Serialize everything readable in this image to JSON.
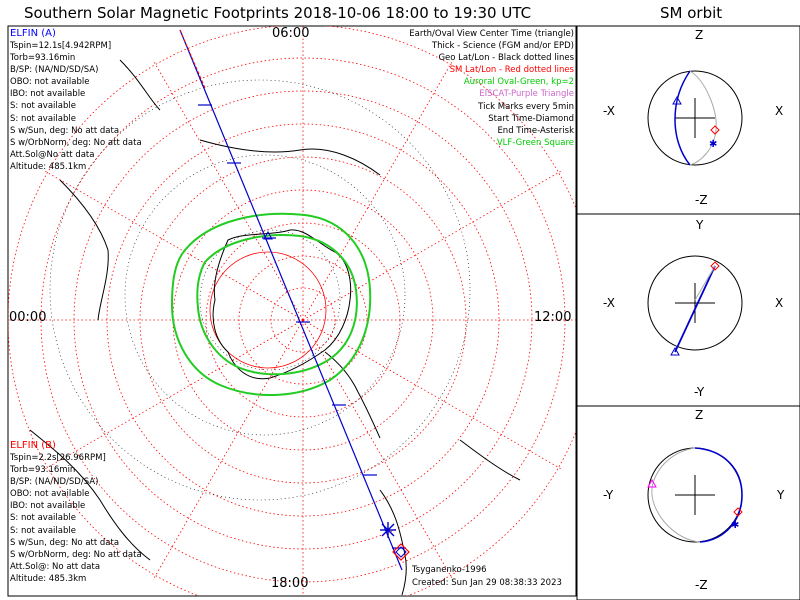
{
  "header": {
    "title": "Southern Solar Magnetic Footprints 2018-10-06 18:00 to 19:30 UTC",
    "orbit_title": "SM orbit"
  },
  "clock_labels": {
    "top": "06:00",
    "left": "00:00",
    "right": "12:00",
    "bottom": "18:00"
  },
  "elfin_a": {
    "name": "ELFIN (A)",
    "color": "#0000ff",
    "lines": [
      "Tspin=12.1s[4.942RPM]",
      "Torb=93.16min",
      "B/SP: (NA/ND/SD/SA)",
      "OBO: not available",
      "IBO: not available",
      "S: not available",
      "S: not available",
      "S w/Sun, deg: No att data",
      "S w/OrbNorm, deg: No att data",
      "Att.Sol@No att data",
      "Altitude: 485.1km"
    ]
  },
  "elfin_b": {
    "name": "ELFIN (B)",
    "color": "#ff0000",
    "lines": [
      "Tspin=2.2s[26.96RPM]",
      "Torb=93.16min",
      "B/SP: (NA/ND/SD/SA)",
      "OBO: not available",
      "IBO: not available",
      "S: not available",
      "S: not available",
      "S w/Sun, deg: No att data",
      "S w/OrbNorm, deg: No att data",
      "Att.Sol@: No att data",
      "Altitude: 485.3km"
    ]
  },
  "legend": [
    {
      "text": "Earth/Oval View Center Time (triangle)",
      "color": "#000000"
    },
    {
      "text": "Thick - Science (FGM and/or EPD)",
      "color": "#000000"
    },
    {
      "text": "Geo Lat/Lon - Black dotted lines",
      "color": "#000000"
    },
    {
      "text": "SM Lat/Lon - Red dotted lines",
      "color": "#ff0000"
    },
    {
      "text": "Auroral Oval-Green, kp=2",
      "color": "#00cc00"
    },
    {
      "text": "EISCAT-Purple Triangle",
      "color": "#cc66cc"
    },
    {
      "text": "Tick Marks every 5min",
      "color": "#000000"
    },
    {
      "text": "Start Time-Diamond",
      "color": "#000000"
    },
    {
      "text": "End Time-Asterisk",
      "color": "#000000"
    },
    {
      "text": "VLF-Green Square",
      "color": "#00cc00"
    }
  ],
  "credits": {
    "model": "Tsyganenko-1996",
    "created": "Created: Sun Jan 29 08:38:33 2023"
  },
  "orbit_panels": [
    {
      "top": "Z",
      "bottom": "-Z",
      "left": "-X",
      "right": "X"
    },
    {
      "top": "Y",
      "bottom": "-Y",
      "left": "-X",
      "right": "X"
    },
    {
      "top": "Z",
      "bottom": "-Z",
      "left": "-Y",
      "right": "Y"
    }
  ],
  "colors": {
    "track": "#0000cc",
    "oval": "#22cc22",
    "grid_sm": "#ff0000",
    "orbit_grey": "#aaaaaa"
  }
}
